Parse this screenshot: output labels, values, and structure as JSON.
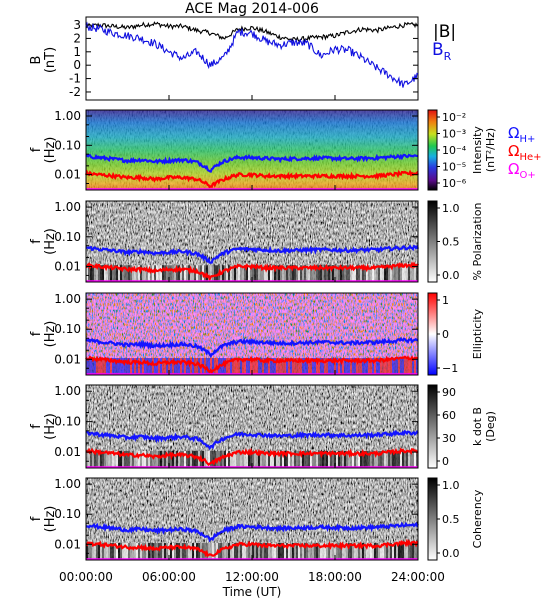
{
  "title": "ACE Mag 2014-006",
  "xlabel": "Time (UT)",
  "xticks": [
    "00:00:00",
    "06:00:00",
    "12:00:00",
    "18:00:00",
    "24:00:00"
  ],
  "freq_ticks": [
    "1.00",
    "0.10",
    "0.01"
  ],
  "colors": {
    "btotal": "#000000",
    "br": "#1010e0",
    "h_plus": "#1414ff",
    "he_plus": "#ff0000",
    "o_plus": "#ff00ff"
  },
  "legend": {
    "btotal": "|B|",
    "br_main": "B",
    "br_sub": "R",
    "omega": "Ω",
    "h_sub": "H+",
    "he_sub": "He+",
    "o_sub": "O+"
  },
  "panels": {
    "mag": {
      "ylabel_main": "B",
      "ylabel_unit": "(nT)",
      "yticks": [
        "3",
        "2",
        "1",
        "0",
        "-1",
        "-2"
      ]
    },
    "intensity": {
      "ylabel_main": "f",
      "ylabel_unit": "(Hz)",
      "cbar_title": "Intensity",
      "cbar_unit": "(nT²/Hz)",
      "cbar_ticks": [
        "10⁻²",
        "10⁻³",
        "10⁻⁴",
        "10⁻⁵",
        "10⁻⁶"
      ]
    },
    "polarization": {
      "ylabel_main": "f",
      "ylabel_unit": "(Hz)",
      "cbar_title": "% Polarization",
      "cbar_ticks": [
        "1.0",
        "0.5",
        "0.0"
      ]
    },
    "ellipticity": {
      "ylabel_main": "f",
      "ylabel_unit": "(Hz)",
      "cbar_title": "Ellipticity",
      "cbar_ticks": [
        "1",
        "0",
        "−1"
      ]
    },
    "kdotb": {
      "ylabel_main": "f",
      "ylabel_unit": "(Hz)",
      "cbar_title": "k dot B",
      "cbar_unit": "(Deg)",
      "cbar_ticks": [
        "90",
        "60",
        "30",
        "0"
      ]
    },
    "coherency": {
      "ylabel_main": "f",
      "ylabel_unit": "(Hz)",
      "cbar_title": "Coherency",
      "cbar_ticks": [
        "1.0",
        "0.5",
        "0.0"
      ]
    }
  },
  "chart_data": {
    "type": "line",
    "title": "ACE Mag 2014-006",
    "xlabel": "Time (UT)",
    "x_hours": [
      0,
      1,
      2,
      3,
      4,
      5,
      6,
      7,
      8,
      9,
      10,
      11,
      12,
      13,
      14,
      15,
      16,
      17,
      18,
      19,
      20,
      21,
      22,
      23,
      24
    ],
    "series": [
      {
        "name": "|B|",
        "panel": "mag",
        "values": [
          2.9,
          3.0,
          2.9,
          2.8,
          3.0,
          3.1,
          2.9,
          2.9,
          2.6,
          2.4,
          2.0,
          2.7,
          2.8,
          2.5,
          2.1,
          1.9,
          2.0,
          2.1,
          2.2,
          2.5,
          2.7,
          2.6,
          2.8,
          3.0,
          3.0
        ]
      },
      {
        "name": "BR",
        "panel": "mag",
        "values": [
          2.9,
          2.7,
          2.4,
          2.2,
          2.0,
          1.6,
          1.0,
          0.5,
          1.0,
          0.0,
          0.6,
          2.5,
          2.4,
          1.8,
          1.5,
          1.7,
          1.6,
          0.7,
          1.2,
          1.1,
          0.5,
          -0.2,
          -0.8,
          -1.5,
          -0.8
        ]
      },
      {
        "name": "ΩH+",
        "panel": "frequency",
        "values": [
          0.043,
          0.038,
          0.034,
          0.03,
          0.032,
          0.028,
          0.03,
          0.032,
          0.027,
          0.014,
          0.029,
          0.039,
          0.038,
          0.036,
          0.034,
          0.035,
          0.036,
          0.037,
          0.036,
          0.035,
          0.036,
          0.037,
          0.04,
          0.043,
          0.043
        ]
      },
      {
        "name": "ΩHe+",
        "panel": "frequency",
        "values": [
          0.011,
          0.01,
          0.009,
          0.008,
          0.008,
          0.007,
          0.008,
          0.008,
          0.007,
          0.004,
          0.007,
          0.01,
          0.01,
          0.009,
          0.009,
          0.009,
          0.009,
          0.009,
          0.009,
          0.009,
          0.009,
          0.009,
          0.01,
          0.011,
          0.011
        ]
      },
      {
        "name": "ΩO+",
        "panel": "frequency",
        "values": [
          0.0027,
          0.0024,
          0.0021,
          0.0019,
          0.002,
          0.0018,
          0.0019,
          0.002,
          0.0017,
          0.0009,
          0.0018,
          0.0024,
          0.0024,
          0.0023,
          0.0021,
          0.0022,
          0.0022,
          0.0023,
          0.0023,
          0.0022,
          0.0022,
          0.0023,
          0.0025,
          0.0027,
          0.0027
        ]
      }
    ],
    "xlim": [
      0,
      24
    ],
    "mag_ylim": [
      -2.6,
      3.6
    ],
    "freq_ylim": [
      0.003,
      1.6
    ],
    "freq_scale": "log"
  }
}
